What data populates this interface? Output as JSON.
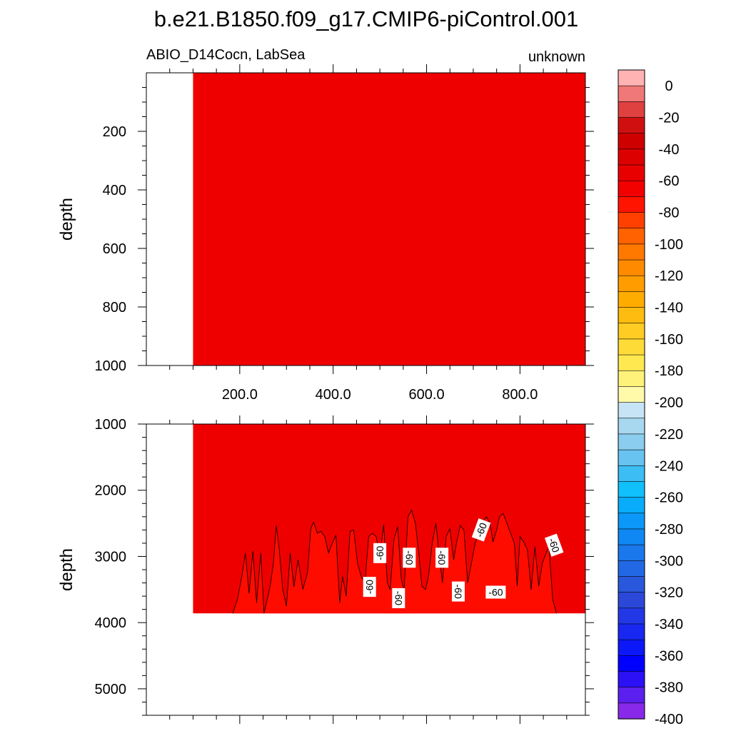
{
  "figure": {
    "title": "b.e21.B1850.f09_g17.CMIP6-piControl.001",
    "subtitle_left": "ABIO_D14Cocn, LabSea",
    "subtitle_right": "unknown"
  },
  "chart_data": [
    {
      "type": "heatmap",
      "panel": "top",
      "ylabel": "depth",
      "xlabel": "",
      "xlim": [
        0,
        940
      ],
      "ylim": [
        1000,
        0
      ],
      "x_ticks": [
        200,
        400,
        600,
        800
      ],
      "x_tick_labels": [
        "200.0",
        "400.0",
        "600.0",
        "800.0"
      ],
      "y_ticks": [
        200,
        400,
        600,
        800,
        1000
      ],
      "y_tick_labels": [
        "200",
        "400",
        "600",
        "800",
        "1000"
      ],
      "data_x_range": [
        100,
        940
      ],
      "fill_value": -55,
      "fill_color": "#ef0000"
    },
    {
      "type": "heatmap",
      "panel": "bottom",
      "ylabel": "depth",
      "xlabel": "",
      "xlim": [
        0,
        940
      ],
      "ylim": [
        5400,
        1000
      ],
      "x_ticks": [
        200,
        400,
        600,
        800
      ],
      "x_tick_labels": [
        "",
        "",
        "",
        ""
      ],
      "y_ticks": [
        1000,
        2000,
        3000,
        4000,
        5000
      ],
      "y_tick_labels": [
        "1000",
        "2000",
        "3000",
        "4000",
        "5000"
      ],
      "data_x_range": [
        100,
        940
      ],
      "data_depth_max": 3860,
      "upper_value": -55,
      "upper_color": "#ef0000",
      "lower_value": -65,
      "lower_color": "#ff0c00",
      "contour_level": -60,
      "contour_points": [
        [
          185,
          3860
        ],
        [
          195,
          3650
        ],
        [
          205,
          3280
        ],
        [
          212,
          2950
        ],
        [
          220,
          3560
        ],
        [
          228,
          2920
        ],
        [
          236,
          3700
        ],
        [
          245,
          2950
        ],
        [
          252,
          3860
        ],
        [
          265,
          3450
        ],
        [
          272,
          3100
        ],
        [
          278,
          2530
        ],
        [
          284,
          2850
        ],
        [
          292,
          3500
        ],
        [
          300,
          3750
        ],
        [
          308,
          2950
        ],
        [
          316,
          3460
        ],
        [
          325,
          3050
        ],
        [
          335,
          3500
        ],
        [
          345,
          3250
        ],
        [
          352,
          2580
        ],
        [
          358,
          2480
        ],
        [
          366,
          2650
        ],
        [
          374,
          2620
        ],
        [
          382,
          2700
        ],
        [
          390,
          2950
        ],
        [
          398,
          2800
        ],
        [
          406,
          2680
        ],
        [
          414,
          3700
        ],
        [
          420,
          3300
        ],
        [
          428,
          3600
        ],
        [
          436,
          2620
        ],
        [
          444,
          2600
        ],
        [
          452,
          3100
        ],
        [
          460,
          3300
        ],
        [
          468,
          3400
        ],
        [
          476,
          2700
        ],
        [
          484,
          2650
        ],
        [
          492,
          2700
        ],
        [
          500,
          3000
        ],
        [
          508,
          2520
        ],
        [
          516,
          3400
        ],
        [
          522,
          3500
        ],
        [
          530,
          2750
        ],
        [
          538,
          2550
        ],
        [
          546,
          3350
        ],
        [
          552,
          3500
        ],
        [
          560,
          2400
        ],
        [
          568,
          2300
        ],
        [
          576,
          2500
        ],
        [
          584,
          3000
        ],
        [
          590,
          3450
        ],
        [
          598,
          3500
        ],
        [
          604,
          3300
        ],
        [
          612,
          2800
        ],
        [
          620,
          2500
        ],
        [
          628,
          3050
        ],
        [
          634,
          3400
        ],
        [
          642,
          2700
        ],
        [
          650,
          2580
        ],
        [
          658,
          3050
        ],
        [
          664,
          2800
        ],
        [
          672,
          2530
        ],
        [
          680,
          2600
        ],
        [
          688,
          3400
        ],
        [
          696,
          3100
        ],
        [
          704,
          2800
        ],
        [
          712,
          2650
        ],
        [
          720,
          2480
        ],
        [
          728,
          2400
        ],
        [
          736,
          2500
        ],
        [
          742,
          2780
        ],
        [
          750,
          2600
        ],
        [
          756,
          2400
        ],
        [
          764,
          2350
        ],
        [
          772,
          2500
        ],
        [
          780,
          2650
        ],
        [
          788,
          2800
        ],
        [
          794,
          3450
        ],
        [
          800,
          2700
        ],
        [
          808,
          2780
        ],
        [
          816,
          2900
        ],
        [
          824,
          3500
        ],
        [
          832,
          2850
        ],
        [
          840,
          3450
        ],
        [
          848,
          3100
        ],
        [
          856,
          2950
        ],
        [
          862,
          2850
        ],
        [
          870,
          3650
        ],
        [
          878,
          3860
        ]
      ],
      "contour_labels": [
        {
          "text": "-60",
          "x": 500,
          "y": 2950,
          "rotate": -90
        },
        {
          "text": "-60",
          "x": 563,
          "y": 3020,
          "rotate": 90
        },
        {
          "text": "-60",
          "x": 633,
          "y": 3020,
          "rotate": 90
        },
        {
          "text": "-60",
          "x": 717,
          "y": 2600,
          "rotate": -70
        },
        {
          "text": "-60",
          "x": 873,
          "y": 2830,
          "rotate": 70
        },
        {
          "text": "-60",
          "x": 478,
          "y": 3460,
          "rotate": -90
        },
        {
          "text": "-60",
          "x": 540,
          "y": 3630,
          "rotate": 90
        },
        {
          "text": "-60",
          "x": 668,
          "y": 3530,
          "rotate": 90
        },
        {
          "text": "-60",
          "x": 748,
          "y": 3540,
          "rotate": 0
        }
      ]
    }
  ],
  "colorbar": {
    "labels": [
      "0",
      "-20",
      "-40",
      "-60",
      "-80",
      "-100",
      "-120",
      "-140",
      "-160",
      "-180",
      "-200",
      "-220",
      "-240",
      "-260",
      "-280",
      "-300",
      "-320",
      "-340",
      "-360",
      "-380",
      "-400"
    ],
    "colors": [
      "#ffb3b3",
      "#f07878",
      "#df4040",
      "#d01010",
      "#cf0000",
      "#dd0000",
      "#e80000",
      "#f30000",
      "#ff1400",
      "#ff4000",
      "#ff6200",
      "#ff7800",
      "#ff8a00",
      "#ff9c00",
      "#ffac00",
      "#ffbc10",
      "#ffcc24",
      "#ffdb38",
      "#ffe850",
      "#fff27a",
      "#fffaaa",
      "#c6e4f6",
      "#a8d8f0",
      "#8acdee",
      "#68c3f0",
      "#3cbdf4",
      "#10c0fb",
      "#08acfa",
      "#0c98f8",
      "#1088f4",
      "#1a78ec",
      "#2268e4",
      "#2a58dc",
      "#2c48d8",
      "#2238e6",
      "#1828f0",
      "#0c18f8",
      "#0000ff",
      "#2c10f6",
      "#5c20ee",
      "#8828e8"
    ]
  }
}
